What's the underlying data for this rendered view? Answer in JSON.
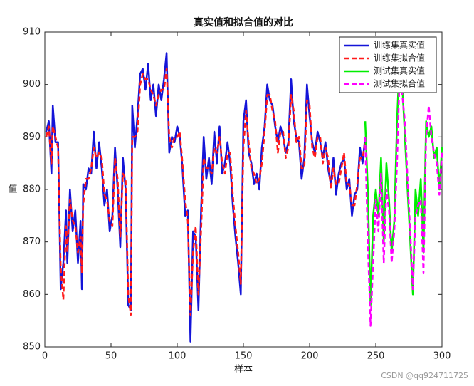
{
  "chart_data": {
    "type": "line",
    "title": "真实值和拟合值的对比",
    "x_label": "样本",
    "y_label": "值",
    "watermark": "CSDN @qq924711725",
    "xlim": [
      0,
      300
    ],
    "xticks": [
      0,
      50,
      100,
      150,
      200,
      250,
      300
    ],
    "ylim": [
      850,
      910
    ],
    "yticks": [
      850,
      860,
      870,
      880,
      890,
      900,
      910
    ],
    "grid": false,
    "legend_location": "northeast",
    "series": [
      {
        "name": "训练集真实值",
        "color": "#1414d8",
        "dash": "solid",
        "x": [
          1,
          3,
          5,
          6,
          8,
          10,
          12,
          14,
          16,
          17,
          19,
          21,
          23,
          25,
          27,
          28,
          29,
          31,
          33,
          35,
          37,
          39,
          41,
          43,
          45,
          47,
          49,
          51,
          53,
          55,
          57,
          59,
          61,
          63,
          65,
          66,
          68,
          70,
          72,
          74,
          76,
          78,
          80,
          82,
          84,
          86,
          88,
          90,
          92,
          94,
          96,
          98,
          100,
          102,
          104,
          106,
          108,
          110,
          112,
          114,
          116,
          118,
          120,
          122,
          124,
          126,
          128,
          130,
          132,
          134,
          136,
          138,
          140,
          142,
          144,
          146,
          148,
          150,
          152,
          154,
          156,
          158,
          160,
          162,
          164,
          166,
          168,
          170,
          172,
          174,
          176,
          178,
          180,
          182,
          184,
          186,
          188,
          190,
          192,
          194,
          196,
          198,
          200,
          202,
          204,
          206,
          208,
          210,
          212,
          214,
          216,
          218,
          220,
          222,
          224,
          226,
          228,
          230,
          232,
          234,
          236,
          238,
          240,
          242
        ],
        "values": [
          891,
          893,
          883,
          896,
          889,
          889,
          861,
          866,
          876,
          866,
          880,
          872,
          876,
          866,
          874,
          861,
          881,
          880,
          884,
          883,
          891,
          884,
          889,
          884,
          877,
          880,
          872,
          875,
          888,
          880,
          869,
          886,
          880,
          858,
          857,
          896,
          888,
          894,
          902,
          903,
          899,
          904,
          897,
          900,
          894,
          900,
          897,
          901,
          906,
          887,
          890,
          889,
          892,
          890,
          884,
          875,
          876,
          851,
          872,
          871,
          857,
          876,
          890,
          882,
          886,
          881,
          891,
          885,
          892,
          883,
          885,
          889,
          885,
          877,
          871,
          866,
          860,
          893,
          897,
          887,
          885,
          881,
          883,
          880,
          888,
          892,
          900,
          897,
          896,
          892,
          889,
          892,
          890,
          887,
          889,
          901,
          893,
          890,
          889,
          882,
          886,
          900,
          894,
          889,
          887,
          891,
          889,
          886,
          889,
          884,
          881,
          886,
          879,
          883,
          885,
          886,
          880,
          882,
          875,
          879,
          880,
          888,
          885,
          890
        ]
      },
      {
        "name": "训练集拟合值",
        "color": "#ff1a1a",
        "dash": "dashed",
        "x": [
          1,
          3,
          5,
          6,
          8,
          10,
          12,
          14,
          16,
          17,
          19,
          21,
          23,
          25,
          27,
          28,
          29,
          31,
          33,
          35,
          37,
          39,
          41,
          43,
          45,
          47,
          49,
          51,
          53,
          55,
          57,
          59,
          61,
          63,
          65,
          66,
          68,
          70,
          72,
          74,
          76,
          78,
          80,
          82,
          84,
          86,
          88,
          90,
          92,
          94,
          96,
          98,
          100,
          102,
          104,
          106,
          108,
          110,
          112,
          114,
          116,
          118,
          120,
          122,
          124,
          126,
          128,
          130,
          132,
          134,
          136,
          138,
          140,
          142,
          144,
          146,
          148,
          150,
          152,
          154,
          156,
          158,
          160,
          162,
          164,
          166,
          168,
          170,
          172,
          174,
          176,
          178,
          180,
          182,
          184,
          186,
          188,
          190,
          192,
          194,
          196,
          198,
          200,
          202,
          204,
          206,
          208,
          210,
          212,
          214,
          216,
          218,
          220,
          222,
          224,
          226,
          228,
          230,
          232,
          234,
          236,
          238,
          240,
          242
        ],
        "values": [
          890,
          892,
          885,
          892,
          890,
          888,
          865,
          859,
          873,
          868,
          878,
          874,
          873,
          868,
          871,
          864,
          877,
          882,
          882,
          884,
          888,
          886,
          887,
          886,
          879,
          878,
          874,
          873,
          886,
          882,
          871,
          883,
          882,
          860,
          856,
          890,
          890,
          891,
          900,
          902,
          901,
          901,
          899,
          898,
          896,
          898,
          899,
          899,
          903,
          890,
          888,
          890,
          890,
          891,
          885,
          878,
          874,
          856,
          868,
          873,
          860,
          872,
          886,
          884,
          884,
          883,
          888,
          887,
          890,
          885,
          883,
          887,
          887,
          879,
          873,
          868,
          862,
          888,
          895,
          889,
          884,
          883,
          881,
          882,
          885,
          891,
          898,
          898,
          895,
          893,
          887,
          891,
          891,
          886,
          888,
          898,
          895,
          889,
          890,
          884,
          884,
          897,
          896,
          888,
          886,
          890,
          890,
          885,
          888,
          886,
          880,
          884,
          881,
          881,
          884,
          887,
          881,
          881,
          877,
          877,
          881,
          886,
          886,
          889
        ]
      },
      {
        "name": "测试集真实值",
        "color": "#00ee00",
        "dash": "solid",
        "x": [
          242,
          244,
          246,
          248,
          250,
          252,
          254,
          256,
          258,
          260,
          262,
          264,
          266,
          268,
          270,
          272,
          274,
          276,
          278,
          280,
          282,
          284,
          286,
          288,
          290,
          292,
          294,
          296,
          298,
          300
        ],
        "values": [
          893,
          880,
          858,
          875,
          880,
          875,
          886,
          870,
          885,
          878,
          868,
          874,
          893,
          905,
          900,
          890,
          880,
          870,
          860,
          880,
          875,
          882,
          868,
          893,
          890,
          892,
          886,
          888,
          880,
          888
        ]
      },
      {
        "name": "测试集拟合值",
        "color": "#ff00ff",
        "dash": "dashed",
        "x": [
          242,
          244,
          246,
          248,
          250,
          252,
          254,
          256,
          258,
          260,
          262,
          264,
          266,
          268,
          270,
          272,
          274,
          276,
          278,
          280,
          282,
          284,
          286,
          288,
          290,
          292,
          294,
          296,
          298,
          300
        ],
        "values": [
          890,
          870,
          854,
          866,
          878,
          872,
          883,
          866,
          880,
          876,
          866,
          872,
          885,
          902,
          898,
          893,
          882,
          872,
          861,
          875,
          877,
          878,
          864,
          890,
          896,
          890,
          887,
          885,
          879,
          887
        ]
      }
    ]
  }
}
